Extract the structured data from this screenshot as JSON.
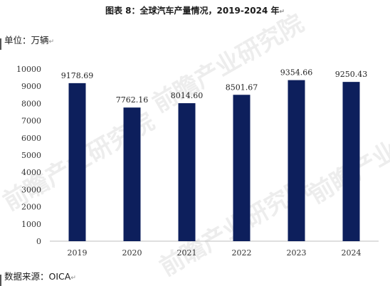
{
  "title": "图表  8：全球汽车产量情况，2019-2024 年",
  "unit_label": "单位：万辆",
  "source_label": "数据来源：OICA",
  "paragraph_mark": "↵",
  "watermark": "前瞻产业研究院",
  "colors": {
    "bar": "#0d1f5c",
    "axis": "#bfbfbf"
  },
  "chart_data": {
    "type": "bar",
    "title": "图表  8：全球汽车产量情况，2019-2024 年",
    "xlabel": "",
    "ylabel": "单位：万辆",
    "categories": [
      "2019",
      "2020",
      "2021",
      "2022",
      "2023",
      "2024"
    ],
    "values": [
      9178.69,
      7762.16,
      8014.6,
      8501.67,
      9354.66,
      9250.43
    ],
    "value_labels": [
      "9178.69",
      "7762.16",
      "8014.60",
      "8501.67",
      "9354.66",
      "9250.43"
    ],
    "ylim": [
      0,
      10000
    ],
    "yticks": [
      0,
      1000,
      2000,
      3000,
      4000,
      5000,
      6000,
      7000,
      8000,
      9000,
      10000
    ],
    "grid": false,
    "legend": "none"
  }
}
